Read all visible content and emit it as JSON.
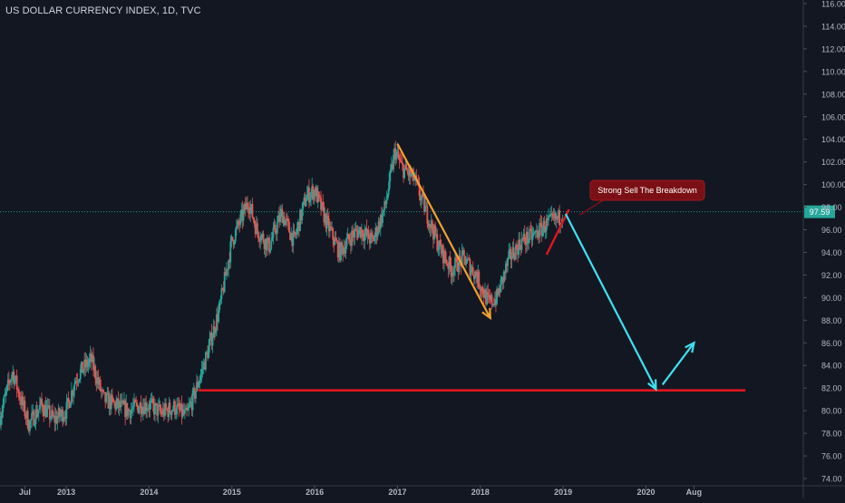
{
  "title": "US DOLLAR CURRENCY INDEX, 1D, TVC",
  "colors": {
    "background": "#131722",
    "up": "#26a69a",
    "down": "#ef5350",
    "price_line": "#26a69a",
    "orange_arrow": "#f0a030",
    "red_line": "#e0161e",
    "cyan_arrow": "#3fe0f0",
    "label_bg": "#7a1015",
    "axis_text": "#b2b5be"
  },
  "chart_data": {
    "type": "candlestick",
    "title": "US DOLLAR CURRENCY INDEX, 1D, TVC",
    "xlabel": "",
    "ylabel": "",
    "ylim": [
      74,
      116
    ],
    "y_ticks": [
      "74.00",
      "76.00",
      "78.00",
      "80.00",
      "82.00",
      "84.00",
      "86.00",
      "88.00",
      "90.00",
      "92.00",
      "94.00",
      "96.00",
      "98.00",
      "100.00",
      "102.00",
      "104.00",
      "106.00",
      "108.00",
      "110.00",
      "112.00",
      "114.00",
      "116.00"
    ],
    "x_ticks": [
      "Jul",
      "2013",
      "2014",
      "2015",
      "2016",
      "2017",
      "2018",
      "2019",
      "2020",
      "Aug"
    ],
    "x_tick_years": [
      2012.5,
      2013,
      2014,
      2015,
      2016,
      2017,
      2018,
      2019,
      2020,
      2020.58
    ],
    "xlim": [
      2012.2,
      2021.9
    ],
    "current_price": "97.59",
    "price_path": [
      [
        2012.2,
        79.5
      ],
      [
        2012.35,
        83.5
      ],
      [
        2012.45,
        81.0
      ],
      [
        2012.55,
        78.8
      ],
      [
        2012.7,
        80.5
      ],
      [
        2012.85,
        79.2
      ],
      [
        2013.0,
        80.0
      ],
      [
        2013.12,
        83.0
      ],
      [
        2013.3,
        84.5
      ],
      [
        2013.45,
        81.0
      ],
      [
        2013.6,
        80.5
      ],
      [
        2013.75,
        80.0
      ],
      [
        2013.9,
        80.5
      ],
      [
        2014.0,
        80.5
      ],
      [
        2014.15,
        79.8
      ],
      [
        2014.3,
        80.3
      ],
      [
        2014.45,
        79.5
      ],
      [
        2014.55,
        81.5
      ],
      [
        2014.7,
        85.0
      ],
      [
        2014.85,
        89.0
      ],
      [
        2015.0,
        95.0
      ],
      [
        2015.2,
        98.5
      ],
      [
        2015.3,
        96.0
      ],
      [
        2015.45,
        94.5
      ],
      [
        2015.6,
        97.5
      ],
      [
        2015.75,
        95.0
      ],
      [
        2015.9,
        99.0
      ],
      [
        2016.0,
        99.5
      ],
      [
        2016.15,
        96.5
      ],
      [
        2016.3,
        94.0
      ],
      [
        2016.45,
        95.5
      ],
      [
        2016.55,
        96.0
      ],
      [
        2016.7,
        95.0
      ],
      [
        2016.85,
        98.0
      ],
      [
        2016.97,
        103.0
      ],
      [
        2017.05,
        101.5
      ],
      [
        2017.2,
        100.5
      ],
      [
        2017.35,
        97.5
      ],
      [
        2017.5,
        94.5
      ],
      [
        2017.65,
        92.5
      ],
      [
        2017.8,
        93.5
      ],
      [
        2017.95,
        92.0
      ],
      [
        2018.1,
        89.5
      ],
      [
        2018.2,
        90.0
      ],
      [
        2018.35,
        93.5
      ],
      [
        2018.5,
        95.0
      ],
      [
        2018.65,
        95.5
      ],
      [
        2018.8,
        96.5
      ],
      [
        2018.95,
        97.0
      ],
      [
        2019.0,
        97.6
      ]
    ],
    "annotations": {
      "label": "Strong Sell The Breakdown",
      "support_level": 81.8,
      "support_x": [
        2014.6,
        2021.2
      ],
      "orange_arrow": [
        [
          2017.0,
          103.6
        ],
        [
          2018.12,
          88.2
        ]
      ],
      "red_trend": [
        [
          2018.8,
          93.8
        ],
        [
          2019.07,
          97.8
        ]
      ],
      "cyan_arrow_down": [
        [
          2019.03,
          97.4
        ],
        [
          2020.12,
          81.9
        ]
      ],
      "cyan_arrow_up": [
        [
          2020.2,
          82.3
        ],
        [
          2020.58,
          86.0
        ]
      ]
    }
  }
}
